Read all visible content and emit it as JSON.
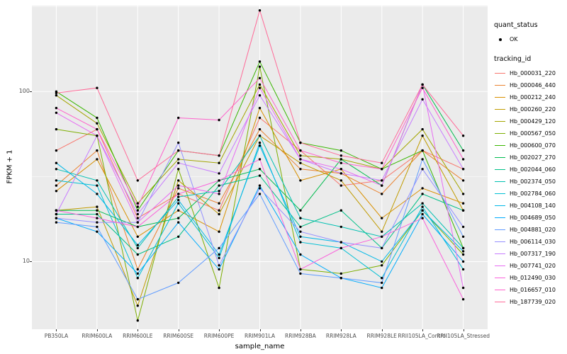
{
  "chart_data": {
    "type": "line",
    "title": "",
    "xlabel": "sample_name",
    "ylabel": "FPKM + 1",
    "yscale": "log10",
    "ylim": [
      4,
      320
    ],
    "yticks": [
      10,
      100
    ],
    "minor_ticks": [
      3.16,
      31.6,
      316
    ],
    "grid": true,
    "panel_bg": "#EBEBEB",
    "grid_color": "#FFFFFF",
    "point_color": "#000000",
    "legend_position": "right",
    "categories": [
      "PB350LA",
      "RRIM600LA",
      "RRIM600LE",
      "RRIM600SE",
      "RRIM600PE",
      "RRIM901LA",
      "RRIM928BA",
      "RRIM928LA",
      "RRIM928LE",
      "RRII105LA_Control",
      "RRII105LA_Stressed"
    ],
    "series": [
      {
        "name": "Hb_000031_220",
        "color": "#F8766D",
        "values": [
          45,
          60,
          18,
          25,
          20,
          70,
          45,
          28,
          30,
          45,
          35
        ]
      },
      {
        "name": "Hb_000046_440",
        "color": "#EA8331",
        "values": [
          28,
          45,
          9,
          27,
          22,
          60,
          35,
          33,
          25,
          45,
          30
        ]
      },
      {
        "name": "Hb_000212_240",
        "color": "#D89000",
        "values": [
          26,
          40,
          14,
          20,
          15,
          80,
          30,
          35,
          18,
          27,
          22
        ]
      },
      {
        "name": "Hb_000260_220",
        "color": "#C09B00",
        "values": [
          20,
          21,
          5.5,
          30,
          19,
          55,
          38,
          30,
          15,
          55,
          20
        ]
      },
      {
        "name": "Hb_000429_120",
        "color": "#A3A500",
        "values": [
          95,
          65,
          22,
          40,
          38,
          110,
          42,
          40,
          35,
          60,
          25
        ]
      },
      {
        "name": "Hb_000567_050",
        "color": "#7CAE00",
        "values": [
          60,
          55,
          4.5,
          35,
          7,
          140,
          9,
          8.5,
          9.5,
          20,
          11
        ]
      },
      {
        "name": "Hb_000600_070",
        "color": "#39B600",
        "values": [
          100,
          70,
          20,
          45,
          42,
          150,
          50,
          45,
          35,
          45,
          12
        ]
      },
      {
        "name": "Hb_002027_270",
        "color": "#00BB4E",
        "values": [
          20,
          20,
          16,
          18,
          30,
          35,
          20,
          40,
          28,
          110,
          45
        ]
      },
      {
        "name": "Hb_002044_060",
        "color": "#00C087",
        "values": [
          19,
          19,
          11,
          14,
          28,
          32,
          16,
          20,
          12,
          25,
          20
        ]
      },
      {
        "name": "Hb_002374_050",
        "color": "#00C0B2",
        "values": [
          35,
          30,
          12,
          24,
          26,
          55,
          18,
          16,
          14,
          22,
          12
        ]
      },
      {
        "name": "Hb_002784_060",
        "color": "#00BFD4",
        "values": [
          30,
          28,
          8,
          22,
          10.5,
          50,
          13,
          12,
          8,
          21,
          9
        ]
      },
      {
        "name": "Hb_004108_140",
        "color": "#00B8E7",
        "values": [
          38,
          25,
          12.5,
          23,
          11,
          48,
          14,
          13,
          10,
          20,
          11.5
        ]
      },
      {
        "name": "Hb_004689_050",
        "color": "#00ACFC",
        "values": [
          18,
          15,
          8.5,
          17,
          9,
          28,
          11,
          8,
          7,
          19,
          10
        ]
      },
      {
        "name": "Hb_004881_020",
        "color": "#619CFF",
        "values": [
          17,
          16,
          6,
          7.5,
          12,
          25,
          8.5,
          8,
          7.5,
          40,
          14
        ]
      },
      {
        "name": "Hb_006114_030",
        "color": "#9590FF",
        "values": [
          18,
          17,
          17,
          50,
          9.5,
          27,
          15,
          13,
          12,
          35,
          16
        ]
      },
      {
        "name": "Hb_007317_190",
        "color": "#C77CFF",
        "values": [
          19,
          55,
          19,
          38,
          33,
          95,
          40,
          33,
          30,
          90,
          35
        ]
      },
      {
        "name": "Hb_007741_020",
        "color": "#E76BF3",
        "values": [
          75,
          55,
          17,
          28,
          25,
          105,
          40,
          35,
          28,
          110,
          7
        ]
      },
      {
        "name": "Hb_012490_030",
        "color": "#FA62DB",
        "values": [
          20,
          18,
          16,
          25,
          30,
          40,
          9,
          12,
          14,
          18,
          6
        ]
      },
      {
        "name": "Hb_016657_010",
        "color": "#FF61CC",
        "values": [
          80,
          60,
          21,
          70,
          68,
          120,
          45,
          38,
          35,
          105,
          40
        ]
      },
      {
        "name": "Hb_187739_020",
        "color": "#FF6A98",
        "values": [
          98,
          105,
          30,
          45,
          42,
          300,
          50,
          42,
          38,
          110,
          55
        ]
      }
    ],
    "legend": {
      "quant_status": {
        "title": "quant_status",
        "items": [
          {
            "label": "OK",
            "symbol": "point"
          }
        ]
      },
      "tracking_id": {
        "title": "tracking_id"
      }
    }
  }
}
